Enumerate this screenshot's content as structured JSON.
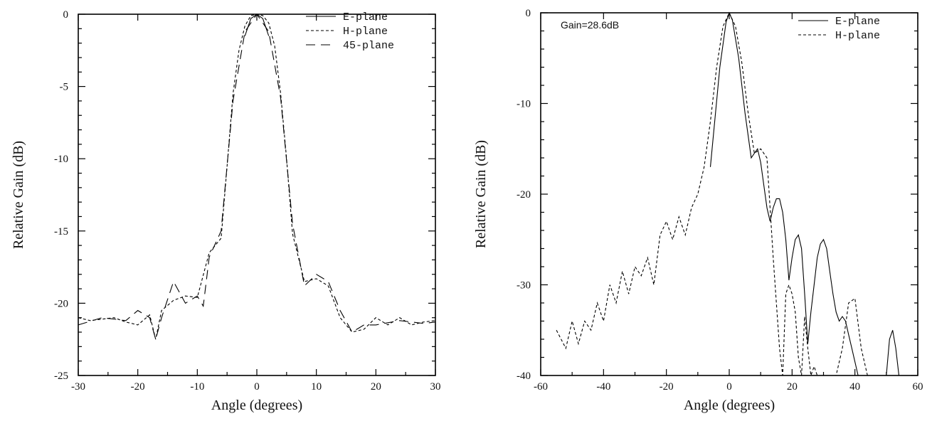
{
  "chart_data": [
    {
      "type": "line",
      "xlabel": "Angle (degrees)",
      "ylabel": "Relative Gain (dB)",
      "xlim": [
        -30,
        30
      ],
      "ylim": [
        -25,
        0
      ],
      "xticks": [
        -30,
        -20,
        -10,
        0,
        10,
        20,
        30
      ],
      "yticks": [
        0,
        -5,
        -10,
        -15,
        -20,
        -25
      ],
      "grid": false,
      "legend_position": "top-right",
      "annotation": "",
      "series": [
        {
          "name": "E-plane",
          "style": "solid",
          "x": [
            -2,
            -1,
            0,
            1,
            2
          ],
          "y": [
            -1.5,
            -0.3,
            0,
            -0.3,
            -1.5
          ]
        },
        {
          "name": "H-plane",
          "style": "dashed",
          "x": [
            -30,
            -28,
            -26,
            -24,
            -22,
            -20,
            -18,
            -17,
            -16,
            -14,
            -12,
            -10,
            -8,
            -6,
            -5,
            -4,
            -3,
            -2,
            -1,
            0,
            1,
            2,
            3,
            4,
            5,
            6,
            8,
            10,
            12,
            14,
            16,
            18,
            20,
            22,
            24,
            26,
            28,
            30
          ],
          "y": [
            -21,
            -21.2,
            -21.1,
            -21,
            -21.3,
            -21.5,
            -20.8,
            -22.5,
            -20.5,
            -19.8,
            -19.5,
            -19.6,
            -16.5,
            -15.5,
            -10.5,
            -5.5,
            -2.5,
            -0.8,
            -0.1,
            0,
            -0.1,
            -0.6,
            -2.2,
            -5.5,
            -10,
            -15.2,
            -18.5,
            -18.3,
            -18.8,
            -21,
            -22,
            -21.8,
            -21,
            -21.5,
            -21,
            -21.5,
            -21.3,
            -21.2
          ]
        },
        {
          "name": "45-plane",
          "style": "long-dash",
          "x": [
            -30,
            -26,
            -22,
            -20,
            -18,
            -17,
            -16,
            -14,
            -12,
            -10,
            -9,
            -8,
            -6,
            -4,
            -2,
            0,
            2,
            4,
            6,
            8,
            10,
            12,
            14,
            16,
            18,
            20,
            24,
            28,
            30
          ],
          "y": [
            -21.5,
            -21,
            -21.2,
            -20.5,
            -21,
            -22.5,
            -21,
            -18.5,
            -20,
            -19.5,
            -20.2,
            -16.8,
            -15,
            -6,
            -1.2,
            0,
            -1.2,
            -5.8,
            -14.5,
            -18.8,
            -18,
            -18.5,
            -20.5,
            -22,
            -21.5,
            -21.5,
            -21.2,
            -21.4,
            -21.3
          ]
        }
      ]
    },
    {
      "type": "line",
      "xlabel": "Angle (degrees)",
      "ylabel": "Relative Gain (dB)",
      "xlim": [
        -60,
        60
      ],
      "ylim": [
        -40,
        0
      ],
      "xticks": [
        -60,
        -40,
        -20,
        0,
        20,
        40,
        60
      ],
      "yticks": [
        0,
        -10,
        -20,
        -30,
        -40
      ],
      "grid": false,
      "legend_position": "top-right",
      "annotation": "Gain=28.6dB",
      "series": [
        {
          "name": "E-plane",
          "style": "solid",
          "x": [
            -6,
            -3,
            -1,
            0,
            1,
            3,
            5,
            7,
            8,
            9,
            10,
            11,
            12,
            13,
            14,
            15,
            16,
            17,
            18,
            19,
            20,
            21,
            22,
            23,
            24,
            25,
            26,
            27,
            28,
            29,
            30,
            31,
            32,
            33,
            34,
            35,
            36,
            37,
            38,
            39,
            40,
            41,
            42,
            50,
            51,
            52,
            53,
            54
          ],
          "y": [
            -17,
            -6,
            -1,
            0,
            -0.8,
            -5,
            -11,
            -16,
            -15.5,
            -15,
            -16.5,
            -19,
            -21.5,
            -23,
            -21.5,
            -20.5,
            -20.5,
            -22,
            -25,
            -29.5,
            -27,
            -25,
            -24.5,
            -26,
            -31,
            -36.5,
            -33,
            -30,
            -27,
            -25.5,
            -25,
            -26,
            -28.5,
            -31,
            -33,
            -34,
            -33.5,
            -34,
            -35.5,
            -37,
            -38.5,
            -40,
            -40,
            -40,
            -36,
            -35,
            -37,
            -40
          ]
        },
        {
          "name": "H-plane",
          "style": "dashed",
          "x": [
            -55,
            -52,
            -50,
            -48,
            -46,
            -44,
            -42,
            -40,
            -38,
            -36,
            -34,
            -32,
            -30,
            -28,
            -26,
            -24,
            -22,
            -20,
            -18,
            -16,
            -14,
            -12,
            -10,
            -8,
            -6,
            -4,
            -2,
            0,
            2,
            4,
            6,
            8,
            10,
            12,
            14,
            16,
            17,
            18,
            19,
            20,
            21,
            22,
            23,
            24,
            25,
            26,
            27,
            28,
            30,
            32,
            34,
            36,
            38,
            40,
            42,
            44
          ],
          "y": [
            -35,
            -37,
            -34,
            -36.5,
            -34,
            -35,
            -32,
            -34,
            -30,
            -32,
            -28.5,
            -31,
            -28,
            -29,
            -27,
            -30,
            -24.5,
            -23,
            -25,
            -22.5,
            -24.5,
            -21.5,
            -20,
            -17,
            -12,
            -6,
            -1.5,
            0,
            -1.5,
            -5.5,
            -11,
            -15.5,
            -15,
            -16,
            -27,
            -37,
            -40,
            -31,
            -30,
            -31,
            -33,
            -38,
            -40,
            -33.5,
            -37,
            -40,
            -39,
            -40,
            -40,
            -40,
            -40,
            -37,
            -32,
            -31.5,
            -37,
            -40
          ]
        }
      ]
    }
  ]
}
